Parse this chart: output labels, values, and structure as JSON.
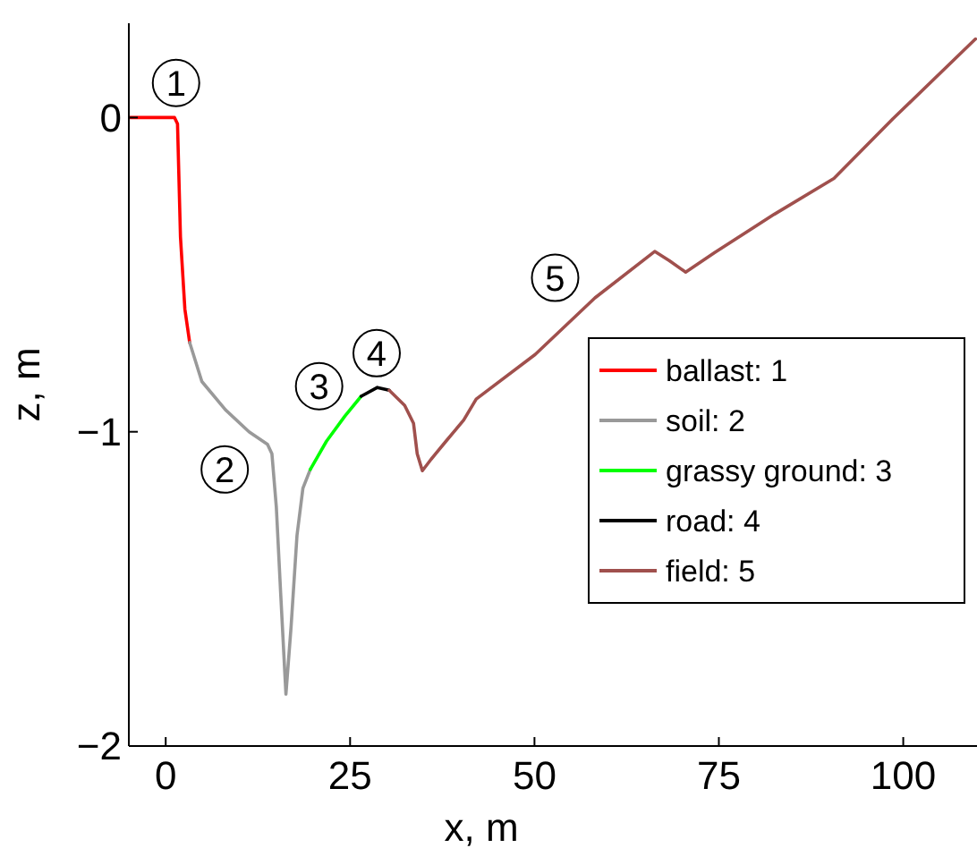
{
  "chart_data": {
    "type": "line",
    "xlabel": "x, m",
    "ylabel": "z, m",
    "xlim": [
      -5,
      110
    ],
    "ylim": [
      -2,
      0.3
    ],
    "xticks": [
      0,
      25,
      50,
      75,
      100
    ],
    "yticks": [
      -2,
      -1,
      0
    ],
    "grid": false,
    "legend": "right",
    "line_style": "solid",
    "marker": "none",
    "series": [
      {
        "name": "ballast: 1",
        "color": "#ff0000",
        "x": [
          -5,
          1.2,
          1.6,
          2.0,
          2.6,
          3.25
        ],
        "values": [
          0,
          0,
          -0.02,
          -0.38,
          -0.61,
          -0.716
        ]
      },
      {
        "name": "soil: 2",
        "color": "#999999",
        "x": [
          3.25,
          4.9,
          8.1,
          11.3,
          13.8,
          14.4,
          15.0,
          15.6,
          16.3,
          17.0,
          17.8,
          18.6,
          19.6
        ],
        "values": [
          -0.716,
          -0.84,
          -0.93,
          -1.0,
          -1.04,
          -1.07,
          -1.24,
          -1.52,
          -1.835,
          -1.62,
          -1.33,
          -1.18,
          -1.12
        ]
      },
      {
        "name": "grassy ground: 3",
        "color": "#00ff00",
        "x": [
          19.6,
          21.8,
          24.3,
          26.5
        ],
        "values": [
          -1.12,
          -1.03,
          -0.95,
          -0.887
        ]
      },
      {
        "name": "road: 4",
        "color": "#000000",
        "x": [
          26.5,
          28.7,
          30.3
        ],
        "values": [
          -0.887,
          -0.859,
          -0.868
        ]
      },
      {
        "name": "field: 5",
        "color": "#a0504d",
        "x": [
          30.3,
          32.4,
          33.6,
          34.1,
          34.8,
          36.0,
          38.0,
          40.4,
          42.1,
          50.1,
          58.2,
          66.3,
          68.3,
          70.5,
          74.4,
          82.5,
          90.6,
          98.6,
          109.8
        ],
        "values": [
          -0.868,
          -0.916,
          -0.973,
          -1.07,
          -1.124,
          -1.087,
          -1.03,
          -0.963,
          -0.896,
          -0.754,
          -0.574,
          -0.426,
          -0.456,
          -0.492,
          -0.43,
          -0.308,
          -0.194,
          -0.004,
          0.25
        ]
      }
    ],
    "annotations": [
      {
        "text": "1",
        "x": 1.4,
        "y": 0.11
      },
      {
        "text": "2",
        "x": 8,
        "y": -1.12
      },
      {
        "text": "3",
        "x": 20.8,
        "y": -0.855
      },
      {
        "text": "4",
        "x": 28.6,
        "y": -0.75
      },
      {
        "text": "5",
        "x": 52.8,
        "y": -0.51
      }
    ]
  }
}
